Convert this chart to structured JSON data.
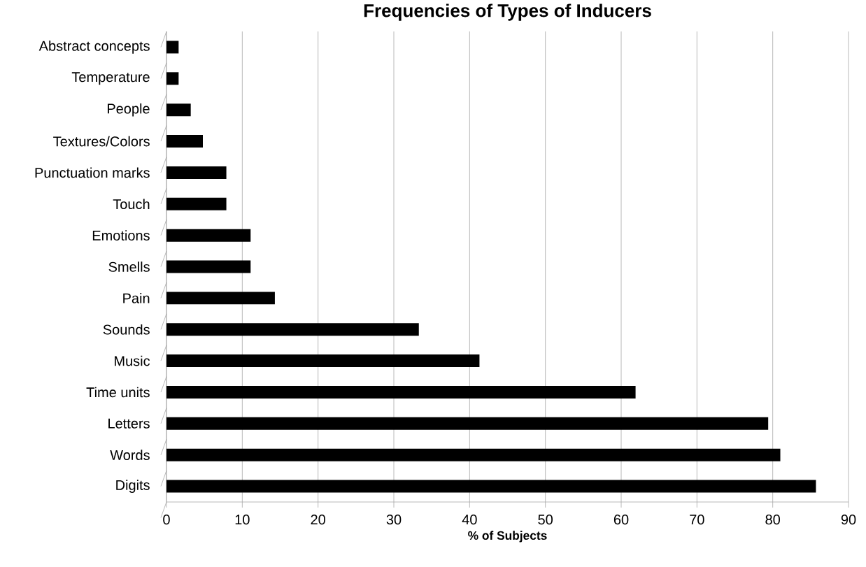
{
  "chart_data": {
    "type": "bar",
    "orientation": "horizontal",
    "title": "Frequencies of Types of Inducers",
    "xlabel": "% of Subjects",
    "categories": [
      "Abstract concepts",
      "Temperature",
      "People",
      "Textures/Colors",
      "Punctuation marks",
      "Touch",
      "Emotions",
      "Smells",
      "Pain",
      "Sounds",
      "Music",
      "Time units",
      "Letters",
      "Words",
      "Digits"
    ],
    "values": [
      1.6,
      1.6,
      3.2,
      4.8,
      7.9,
      7.9,
      11.1,
      11.1,
      14.3,
      33.3,
      41.3,
      61.9,
      79.4,
      81.0,
      85.7
    ],
    "color": "#000000",
    "xlim": [
      0,
      90
    ],
    "xticks": [
      0,
      10,
      20,
      30,
      40,
      50,
      60,
      70,
      80,
      90
    ],
    "grid": "x"
  }
}
